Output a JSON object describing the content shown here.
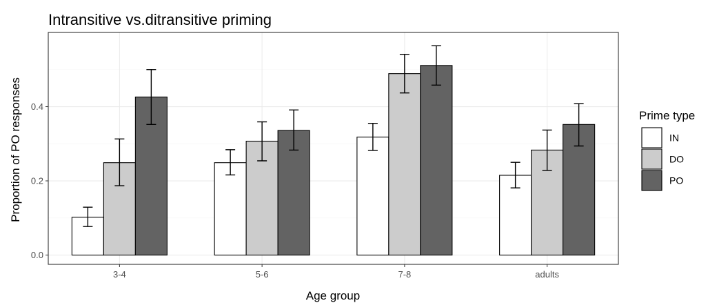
{
  "chart_data": {
    "type": "bar",
    "title": "Intransitive vs.ditransitive priming",
    "xlabel": "Age group",
    "ylabel": "Proportion of PO responses",
    "categories": [
      "3-4",
      "5-6",
      "7-8",
      "adults"
    ],
    "ylim": [
      -0.025,
      0.6
    ],
    "yticks": [
      0.0,
      0.2,
      0.4
    ],
    "ytick_labels": [
      "0.0",
      "0.2",
      "0.4"
    ],
    "grid": true,
    "legend": {
      "title": "Prime type",
      "placement": "right"
    },
    "series": [
      {
        "name": "IN",
        "color": "#ffffff",
        "values": [
          0.102,
          0.249,
          0.318,
          0.215
        ],
        "err_low": [
          0.077,
          0.216,
          0.282,
          0.181
        ],
        "err_high": [
          0.129,
          0.284,
          0.355,
          0.25
        ]
      },
      {
        "name": "DO",
        "color": "#cccccc",
        "values": [
          0.249,
          0.307,
          0.489,
          0.283
        ],
        "err_low": [
          0.187,
          0.254,
          0.437,
          0.228
        ],
        "err_high": [
          0.313,
          0.359,
          0.541,
          0.337
        ]
      },
      {
        "name": "PO",
        "color": "#636363",
        "values": [
          0.426,
          0.336,
          0.511,
          0.352
        ],
        "err_low": [
          0.352,
          0.283,
          0.458,
          0.294
        ],
        "err_high": [
          0.5,
          0.391,
          0.564,
          0.408
        ]
      }
    ]
  }
}
